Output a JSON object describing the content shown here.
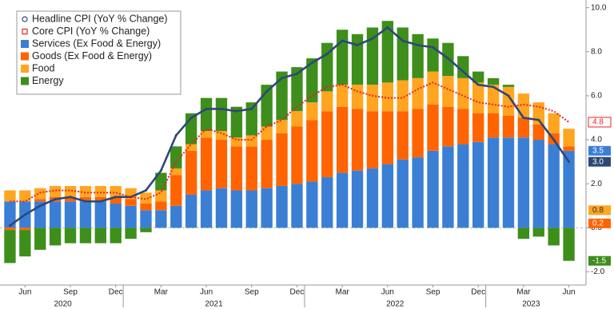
{
  "chart_data": {
    "type": "bar",
    "categories": [
      "",
      "Jun",
      null,
      null,
      "Sep",
      null,
      null,
      "Dec",
      null,
      null,
      "Mar",
      null,
      null,
      "Jun",
      null,
      null,
      "Sep",
      null,
      null,
      "Dec",
      null,
      null,
      "Mar",
      null,
      null,
      "Jun",
      null,
      null,
      "Sep",
      null,
      null,
      "Dec",
      null,
      null,
      "Mar",
      null,
      null,
      "Jun"
    ],
    "years": [
      "2020",
      "2021",
      "2022",
      "2023"
    ],
    "ylim": [
      -2.6,
      10.35
    ],
    "yticks": [
      {
        "value": -2,
        "label": "-2.0"
      },
      {
        "value": 0,
        "label": "0.0"
      },
      {
        "value": 2,
        "label": "2.0"
      },
      {
        "value": 4,
        "label": "4.0"
      },
      {
        "value": 6,
        "label": "6.0"
      },
      {
        "value": 8,
        "label": "8.0"
      },
      {
        "value": 10,
        "label": "10.0"
      }
    ],
    "series": [
      {
        "name": "Headline CPI (YoY % Change)",
        "type": "line",
        "color": "#2d4878",
        "values": [
          0.1,
          0.6,
          1.0,
          1.3,
          1.4,
          1.2,
          1.2,
          1.4,
          1.4,
          1.7,
          2.6,
          4.2,
          5.0,
          5.4,
          5.4,
          5.3,
          5.4,
          6.2,
          6.8,
          7.0,
          7.5,
          7.9,
          8.5,
          8.3,
          8.6,
          9.1,
          8.5,
          8.3,
          8.2,
          7.7,
          7.1,
          6.5,
          6.4,
          6.0,
          5.0,
          4.9,
          4.0,
          3.0
        ],
        "value_labels": [
          null,
          null,
          null,
          null,
          null,
          null,
          null,
          null,
          null,
          null,
          null,
          null,
          null,
          null,
          null,
          null,
          null,
          null,
          null,
          null,
          null,
          null,
          null,
          null,
          null,
          null,
          null,
          null,
          null,
          null,
          null,
          null,
          null,
          null,
          null,
          null,
          null,
          "3.0"
        ]
      },
      {
        "name": "Core CPI (YoY % Change)",
        "type": "line",
        "color": "#e8212a",
        "values": [
          1.2,
          1.2,
          1.6,
          1.7,
          1.7,
          1.6,
          1.6,
          1.6,
          1.4,
          1.3,
          1.6,
          3.0,
          3.8,
          4.5,
          4.3,
          4.0,
          4.0,
          4.6,
          4.9,
          5.5,
          6.0,
          6.4,
          6.5,
          6.2,
          6.0,
          5.9,
          5.9,
          6.3,
          6.6,
          6.3,
          6.0,
          5.7,
          5.6,
          5.5,
          5.6,
          5.5,
          5.3,
          4.8
        ]
      },
      {
        "name": "Services (Ex Food & Energy)",
        "type": "bar",
        "color": "#3b7fd4",
        "values": [
          1.2,
          1.2,
          1.2,
          1.2,
          1.2,
          1.2,
          1.2,
          1.1,
          1.0,
          0.8,
          0.8,
          1.0,
          1.5,
          1.7,
          1.8,
          1.7,
          1.7,
          1.8,
          1.9,
          2.0,
          2.1,
          2.3,
          2.5,
          2.6,
          2.7,
          2.9,
          3.1,
          3.2,
          3.5,
          3.7,
          3.8,
          3.9,
          4.1,
          4.1,
          4.1,
          4.0,
          3.8,
          3.5
        ]
      },
      {
        "name": "Goods (Ex Food & Energy)",
        "type": "bar",
        "color": "#ff6400",
        "values": [
          -0.1,
          -0.1,
          0.1,
          0.2,
          0.2,
          0.2,
          0.2,
          0.3,
          0.3,
          0.3,
          0.4,
          1.4,
          2.0,
          2.4,
          2.2,
          2.0,
          2.0,
          2.2,
          2.4,
          2.6,
          2.8,
          3.0,
          3.0,
          2.8,
          2.6,
          2.4,
          2.2,
          2.2,
          2.1,
          1.8,
          1.6,
          1.3,
          1.1,
          1.0,
          0.9,
          0.7,
          0.5,
          0.2
        ]
      },
      {
        "name": "Food",
        "type": "bar",
        "color": "#ffa51f",
        "values": [
          0.5,
          0.5,
          0.5,
          0.5,
          0.5,
          0.5,
          0.5,
          0.5,
          0.5,
          0.5,
          0.5,
          0.3,
          0.3,
          0.3,
          0.4,
          0.4,
          0.5,
          0.6,
          0.6,
          0.7,
          0.8,
          0.9,
          1.0,
          1.1,
          1.2,
          1.3,
          1.4,
          1.4,
          1.5,
          1.4,
          1.4,
          1.4,
          1.3,
          1.3,
          1.1,
          1.0,
          0.9,
          0.8
        ]
      },
      {
        "name": "Energy",
        "type": "bar",
        "color": "#3e8e1c",
        "values": [
          -1.5,
          -1.2,
          -1.0,
          -0.8,
          -0.7,
          -0.7,
          -0.7,
          -0.7,
          -0.5,
          -0.2,
          0.8,
          1.0,
          1.4,
          1.5,
          1.5,
          1.4,
          1.5,
          1.9,
          2.2,
          2.0,
          2.0,
          2.2,
          2.5,
          2.3,
          2.6,
          2.8,
          2.4,
          2.0,
          1.5,
          1.5,
          1.0,
          0.5,
          0.3,
          0.1,
          -0.5,
          -0.4,
          -0.8,
          -1.5
        ]
      }
    ]
  }
}
